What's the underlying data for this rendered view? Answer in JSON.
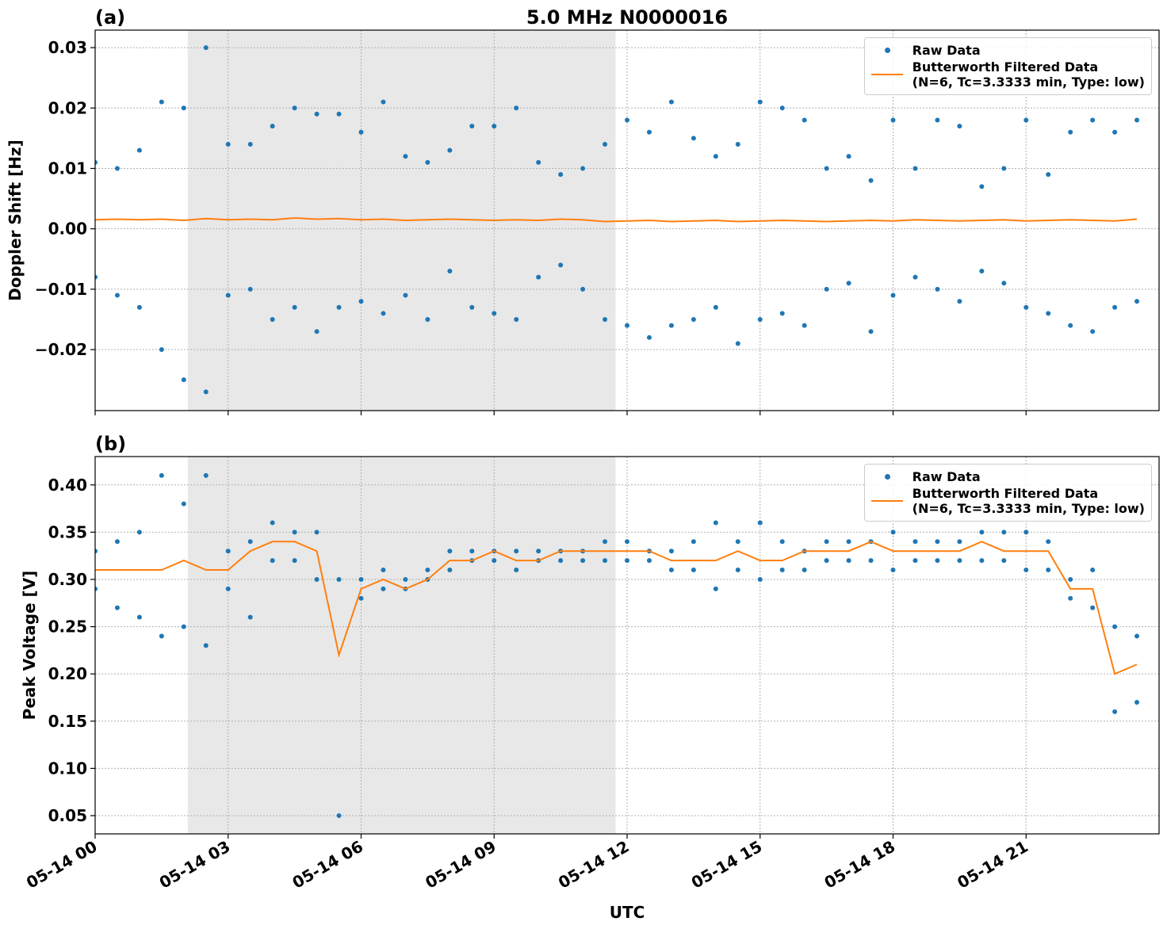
{
  "chart_data": [
    {
      "type": "scatter_line",
      "panel_label": "(a)",
      "title": "5.0 MHz N0000016",
      "ylabel": "Doppler Shift [Hz]",
      "xlim": [
        0,
        24
      ],
      "ylim": [
        -0.0301,
        0.0329
      ],
      "yticks": [
        {
          "value": -0.02,
          "label": "−0.02"
        },
        {
          "value": -0.01,
          "label": "−0.01"
        },
        {
          "value": 0,
          "label": "0.00"
        },
        {
          "value": 0.01,
          "label": "0.01"
        },
        {
          "value": 0.02,
          "label": "0.02"
        },
        {
          "value": 0.03,
          "label": "0.03"
        }
      ],
      "grid": true,
      "legend": "upper right",
      "shaded_span": [
        2.09,
        11.74
      ],
      "shade_color": "#e8e8e8",
      "series": [
        {
          "name": "Raw Data",
          "style": "markers",
          "color": "#1f77b4",
          "x": [
            0,
            0,
            0.5,
            0.5,
            1,
            1,
            1.5,
            1.5,
            2,
            2,
            2.5,
            2.5,
            3,
            3,
            3.5,
            3.5,
            4,
            4,
            4.5,
            4.5,
            5,
            5,
            5.5,
            5.5,
            6,
            6,
            6.5,
            6.5,
            7,
            7,
            7.5,
            7.5,
            8,
            8,
            8.5,
            8.5,
            9,
            9,
            9.5,
            9.5,
            10,
            10,
            10.5,
            10.5,
            11,
            11,
            11.5,
            11.5,
            12,
            12,
            12.5,
            12.5,
            13,
            13,
            13.5,
            13.5,
            14,
            14,
            14.5,
            14.5,
            15,
            15,
            15.5,
            15.5,
            16,
            16,
            16.5,
            16.5,
            17,
            17,
            17.5,
            17.5,
            18,
            18,
            18.5,
            18.5,
            19,
            19,
            19.5,
            19.5,
            20,
            20,
            20.5,
            20.5,
            21,
            21,
            21.5,
            21.5,
            22,
            22,
            22.5,
            22.5,
            23,
            23,
            23.5,
            23.5
          ],
          "values": [
            0.011,
            -0.008,
            0.01,
            -0.011,
            0.013,
            -0.013,
            0.021,
            -0.02,
            0.02,
            -0.025,
            0.03,
            -0.027,
            0.014,
            -0.011,
            0.014,
            -0.01,
            0.017,
            -0.015,
            0.02,
            -0.013,
            0.019,
            -0.017,
            0.019,
            -0.013,
            0.016,
            -0.012,
            0.021,
            -0.014,
            0.012,
            -0.011,
            0.011,
            -0.015,
            0.013,
            -0.007,
            0.017,
            -0.013,
            0.017,
            -0.014,
            0.02,
            -0.015,
            0.011,
            -0.008,
            0.009,
            -0.006,
            0.01,
            -0.01,
            0.014,
            -0.015,
            0.018,
            -0.016,
            0.016,
            -0.018,
            0.021,
            -0.016,
            0.015,
            -0.015,
            0.012,
            -0.013,
            0.014,
            -0.019,
            0.021,
            -0.015,
            0.02,
            -0.014,
            0.018,
            -0.016,
            0.01,
            -0.01,
            0.012,
            -0.009,
            0.008,
            -0.017,
            0.018,
            -0.011,
            0.01,
            -0.008,
            0.018,
            -0.01,
            0.017,
            -0.012,
            0.007,
            -0.007,
            0.01,
            -0.009,
            0.018,
            -0.013,
            0.009,
            -0.014,
            0.016,
            -0.016,
            0.018,
            -0.017,
            0.016,
            -0.013,
            0.018,
            -0.012
          ]
        },
        {
          "name": "Butterworth Filtered Data\n(N=6, Tc=3.3333 min, Type: low)",
          "style": "line",
          "color": "#ff7f0e",
          "x": [
            0,
            0.5,
            1,
            1.5,
            2,
            2.5,
            3,
            3.5,
            4,
            4.5,
            5,
            5.5,
            6,
            6.5,
            7,
            7.5,
            8,
            8.5,
            9,
            9.5,
            10,
            10.5,
            11,
            11.5,
            12,
            12.5,
            13,
            13.5,
            14,
            14.5,
            15,
            15.5,
            16,
            16.5,
            17,
            17.5,
            18,
            18.5,
            19,
            19.5,
            20,
            20.5,
            21,
            21.5,
            22,
            22.5,
            23,
            23.5
          ],
          "values": [
            0.0015,
            0.0016,
            0.0015,
            0.0016,
            0.0014,
            0.0017,
            0.0015,
            0.0016,
            0.0015,
            0.0018,
            0.0016,
            0.0017,
            0.0015,
            0.0016,
            0.0014,
            0.0015,
            0.0016,
            0.0015,
            0.0014,
            0.0015,
            0.0014,
            0.0016,
            0.0015,
            0.0012,
            0.0013,
            0.0014,
            0.0012,
            0.0013,
            0.0014,
            0.0012,
            0.0013,
            0.0014,
            0.0013,
            0.0012,
            0.0013,
            0.0014,
            0.0013,
            0.0015,
            0.0014,
            0.0013,
            0.0014,
            0.0015,
            0.0013,
            0.0014,
            0.0015,
            0.0014,
            0.0013,
            0.0016
          ]
        }
      ]
    },
    {
      "type": "scatter_line",
      "panel_label": "(b)",
      "ylabel": "Peak Voltage [V]",
      "xlabel": "UTC",
      "xlim": [
        0,
        24
      ],
      "ylim": [
        0.0307,
        0.43
      ],
      "xticks": [
        {
          "value": 0,
          "label": "05-14 00"
        },
        {
          "value": 3,
          "label": "05-14 03"
        },
        {
          "value": 6,
          "label": "05-14 06"
        },
        {
          "value": 9,
          "label": "05-14 09"
        },
        {
          "value": 12,
          "label": "05-14 12"
        },
        {
          "value": 15,
          "label": "05-14 15"
        },
        {
          "value": 18,
          "label": "05-14 18"
        },
        {
          "value": 21,
          "label": "05-14 21"
        }
      ],
      "yticks": [
        0.05,
        {
          "value": 0.1,
          "label": "0.10"
        },
        0.15,
        {
          "value": 0.2,
          "label": "0.20"
        },
        0.25,
        {
          "value": 0.3,
          "label": "0.30"
        },
        0.35,
        {
          "value": 0.4,
          "label": "0.40"
        }
      ],
      "grid": true,
      "legend": "upper right",
      "shaded_span": [
        2.09,
        11.74
      ],
      "shade_color": "#e8e8e8",
      "series": [
        {
          "name": "Raw Data",
          "style": "markers",
          "color": "#1f77b4",
          "x": [
            0,
            0,
            0.5,
            0.5,
            1,
            1,
            1.5,
            1.5,
            2,
            2,
            2.5,
            2.5,
            3,
            3,
            3.5,
            3.5,
            4,
            4,
            4.5,
            4.5,
            5,
            5,
            5.5,
            5.5,
            6,
            6,
            6.5,
            6.5,
            7,
            7,
            7.5,
            7.5,
            8,
            8,
            8.5,
            8.5,
            9,
            9,
            9.5,
            9.5,
            10,
            10,
            10.5,
            10.5,
            11,
            11,
            11.5,
            11.5,
            12,
            12,
            12.5,
            12.5,
            13,
            13,
            13.5,
            13.5,
            14,
            14,
            14.5,
            14.5,
            15,
            15,
            15.5,
            15.5,
            16,
            16,
            16.5,
            16.5,
            17,
            17,
            17.5,
            17.5,
            18,
            18,
            18.5,
            18.5,
            19,
            19,
            19.5,
            19.5,
            20,
            20,
            20.5,
            20.5,
            21,
            21,
            21.5,
            21.5,
            22,
            22,
            22.5,
            22.5,
            23,
            23,
            23.5,
            23.5
          ],
          "values": [
            0.33,
            0.29,
            0.34,
            0.27,
            0.35,
            0.26,
            0.41,
            0.24,
            0.38,
            0.25,
            0.41,
            0.23,
            0.33,
            0.29,
            0.34,
            0.26,
            0.36,
            0.32,
            0.35,
            0.32,
            0.35,
            0.3,
            0.3,
            0.05,
            0.3,
            0.28,
            0.31,
            0.29,
            0.3,
            0.29,
            0.31,
            0.3,
            0.33,
            0.31,
            0.33,
            0.32,
            0.33,
            0.32,
            0.33,
            0.31,
            0.33,
            0.32,
            0.33,
            0.32,
            0.33,
            0.32,
            0.34,
            0.32,
            0.34,
            0.32,
            0.33,
            0.32,
            0.33,
            0.31,
            0.34,
            0.31,
            0.36,
            0.29,
            0.34,
            0.31,
            0.36,
            0.3,
            0.34,
            0.31,
            0.33,
            0.31,
            0.34,
            0.32,
            0.34,
            0.32,
            0.34,
            0.32,
            0.35,
            0.31,
            0.34,
            0.32,
            0.34,
            0.32,
            0.34,
            0.32,
            0.35,
            0.32,
            0.35,
            0.32,
            0.35,
            0.31,
            0.34,
            0.31,
            0.3,
            0.28,
            0.31,
            0.27,
            0.25,
            0.16,
            0.24,
            0.17
          ]
        },
        {
          "name": "Butterworth Filtered Data\n(N=6, Tc=3.3333 min, Type: low)",
          "style": "line",
          "color": "#ff7f0e",
          "x": [
            0,
            0.5,
            1,
            1.5,
            2,
            2.5,
            3,
            3.5,
            4,
            4.5,
            5,
            5.5,
            6,
            6.5,
            7,
            7.5,
            8,
            8.5,
            9,
            9.5,
            10,
            10.5,
            11,
            11.5,
            12,
            12.5,
            13,
            13.5,
            14,
            14.5,
            15,
            15.5,
            16,
            16.5,
            17,
            17.5,
            18,
            18.5,
            19,
            19.5,
            20,
            20.5,
            21,
            21.5,
            22,
            22.5,
            23,
            23.5
          ],
          "values": [
            0.31,
            0.31,
            0.31,
            0.31,
            0.32,
            0.31,
            0.31,
            0.33,
            0.34,
            0.34,
            0.33,
            0.22,
            0.29,
            0.3,
            0.29,
            0.3,
            0.32,
            0.32,
            0.33,
            0.32,
            0.32,
            0.33,
            0.33,
            0.33,
            0.33,
            0.33,
            0.32,
            0.32,
            0.32,
            0.33,
            0.32,
            0.32,
            0.33,
            0.33,
            0.33,
            0.34,
            0.33,
            0.33,
            0.33,
            0.33,
            0.34,
            0.33,
            0.33,
            0.33,
            0.29,
            0.29,
            0.2,
            0.21
          ]
        }
      ]
    }
  ]
}
